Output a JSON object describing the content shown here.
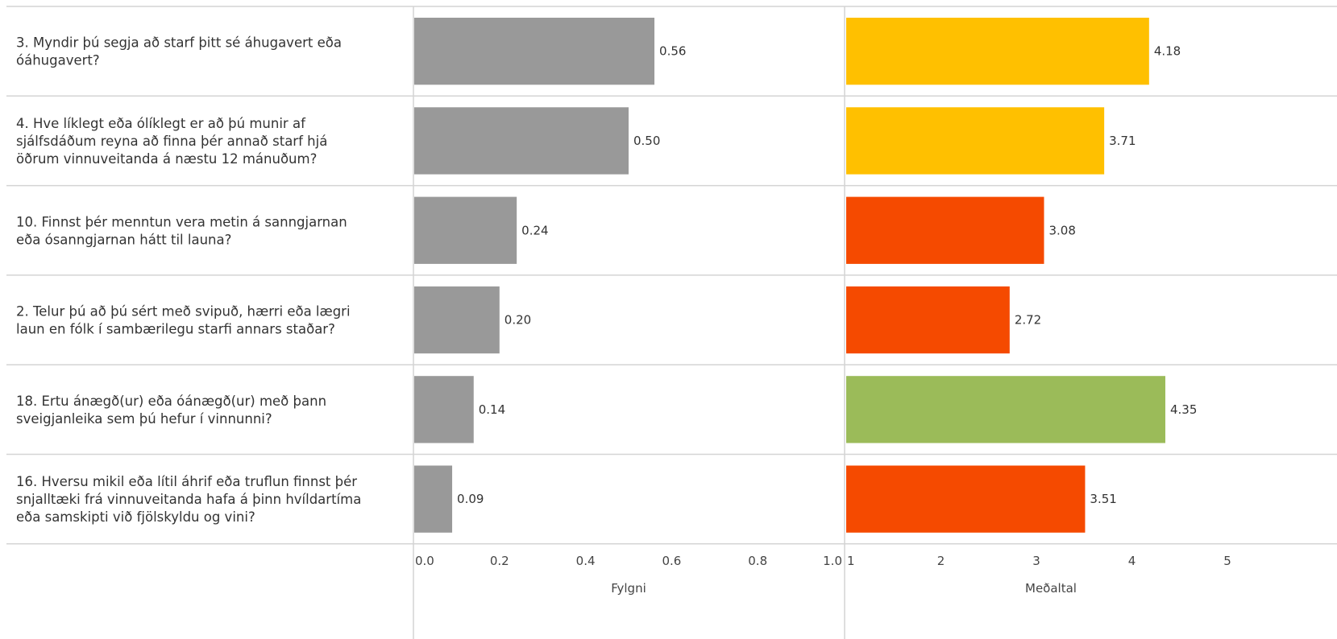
{
  "chart_data": {
    "type": "bar",
    "orientation": "horizontal",
    "categories": [
      "3. Myndir þú segja að starf þitt sé áhugavert eða óáhugavert?",
      "4. Hve líklegt eða ólíklegt er að þú munir af sjálfsdáðum reyna að finna þér annað starf hjá öðrum vinnuveitanda á næstu 12 mánuðum?",
      "10. Finnst þér menntun vera metin á sanngjarnan eða ósanngjarnan hátt til launa?",
      "2. Telur þú að þú sért með svipuð, hærri eða lægri laun en fólk í sambærilegu starfi annars staðar?",
      "18. Ertu ánægð(ur) eða óánægð(ur) með þann sveigjanleika sem þú hefur í vinnunni?",
      "16. Hversu mikil eða lítil áhrif eða truflun finnst þér snjalltæki frá vinnuveitanda hafa á þinn hvíldartíma eða samskipti við fjölskyldu og vini?"
    ],
    "category_lines": [
      [
        "3. Myndir þú segja að starf þitt sé áhugavert eða",
        "óáhugavert?"
      ],
      [
        "4. Hve líklegt eða ólíklegt er að þú munir af",
        "sjálfsdáðum reyna að finna þér annað starf hjá",
        "öðrum vinnuveitanda á næstu 12 mánuðum?"
      ],
      [
        "10. Finnst þér menntun vera metin á sanngjarnan",
        "eða ósanngjarnan hátt til launa?"
      ],
      [
        "2. Telur þú að þú sért með svipuð, hærri eða lægri",
        "laun en fólk í sambærilegu starfi annars staðar?"
      ],
      [
        "18. Ertu ánægð(ur) eða óánægð(ur) með þann",
        "sveigjanleika sem þú hefur í vinnunni?"
      ],
      [
        "16. Hversu mikil eða lítil áhrif eða truflun finnst þér",
        "snjalltæki frá vinnuveitanda hafa á þinn hvíldartíma",
        "eða samskipti við fjölskyldu og vini?"
      ]
    ],
    "panels": [
      {
        "xlabel": "Fylgni",
        "xlim": [
          0,
          1
        ],
        "ticks": [
          0.0,
          0.2,
          0.4,
          0.6,
          0.8,
          1.0
        ],
        "tick_labels": [
          "0.0",
          "0.2",
          "0.4",
          "0.6",
          "0.8",
          "1.0"
        ],
        "values": [
          0.56,
          0.5,
          0.24,
          0.2,
          0.14,
          0.09
        ],
        "value_labels": [
          "0.56",
          "0.50",
          "0.24",
          "0.20",
          "0.14",
          "0.09"
        ],
        "colors": [
          "#999999",
          "#999999",
          "#999999",
          "#999999",
          "#999999",
          "#999999"
        ]
      },
      {
        "xlabel": "Meðaltal",
        "xlim": [
          1,
          5.4
        ],
        "ticks": [
          1,
          2,
          3,
          4,
          5
        ],
        "tick_labels": [
          "1",
          "2",
          "3",
          "4",
          "5"
        ],
        "values": [
          4.18,
          3.71,
          3.08,
          2.72,
          4.35,
          3.51
        ],
        "value_labels": [
          "4.18",
          "3.71",
          "3.08",
          "2.72",
          "4.35",
          "3.51"
        ],
        "colors": [
          "#FFC000",
          "#FFC000",
          "#F54A00",
          "#F54A00",
          "#9BBB59",
          "#F54A00"
        ]
      }
    ],
    "grid": false,
    "legend": "none"
  }
}
